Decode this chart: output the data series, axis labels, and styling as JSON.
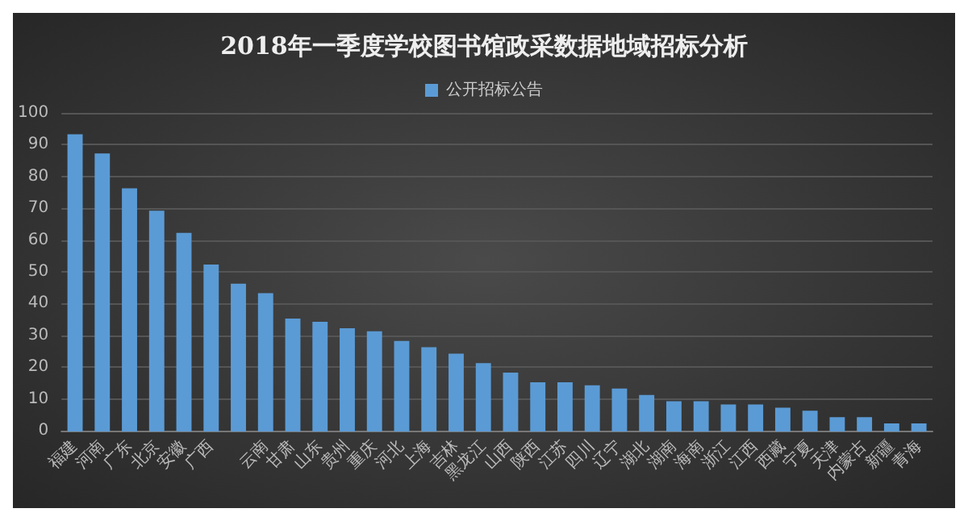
{
  "chart_data": {
    "type": "bar",
    "title": "2018年一季度学校图书馆政采数据地域招标分析",
    "categories": [
      "福建",
      "河南",
      "广东",
      "北京",
      "安徽",
      "广西",
      null,
      "云南",
      "甘肃",
      "山东",
      "贵州",
      "重庆",
      "河北",
      "上海",
      "吉林",
      "黑龙江",
      "山西",
      "陕西",
      "江苏",
      "四川",
      "辽宁",
      "湖北",
      "湖南",
      "海南",
      "浙江",
      "江西",
      "西藏",
      "宁夏",
      "天津",
      "内蒙古",
      "新疆",
      "青海"
    ],
    "series": [
      {
        "name": "公开招标公告",
        "color": "#5b9bd5",
        "values": [
          93,
          87,
          76,
          69,
          62,
          52,
          46,
          43,
          35,
          34,
          32,
          31,
          28,
          26,
          24,
          21,
          18,
          15,
          15,
          14,
          13,
          11,
          9,
          9,
          8,
          8,
          7,
          6,
          4,
          4,
          2,
          2
        ]
      }
    ],
    "ylim": [
      0,
      100
    ],
    "yticks": [
      0,
      10,
      20,
      30,
      40,
      50,
      60,
      70,
      80,
      90,
      100
    ],
    "grid": "y",
    "legend": "top"
  }
}
